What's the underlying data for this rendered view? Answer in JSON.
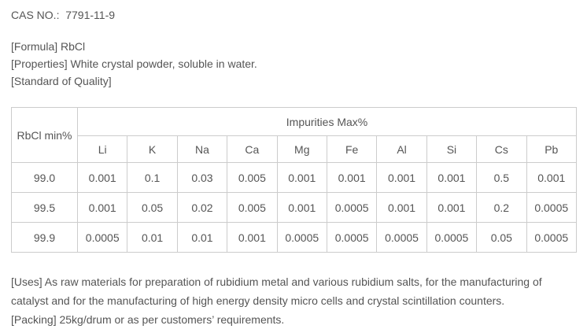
{
  "page": {
    "cas_line": "CAS NO.:  7791-11-9",
    "formula_line": "[Formula] RbCl",
    "properties_line": "[Properties] White crystal powder, soluble in water.",
    "standard_line": "[Standard of Quality]",
    "uses_line": "[Uses] As raw materials for preparation of rubidium metal and various rubidium salts, for the manufacturing of catalyst and for the manufacturing of high energy density micro cells and crystal scintillation counters.",
    "packing_line": "[Packing] 25kg/drum or as per customers’ requirements."
  },
  "table": {
    "corner_header": "RbCl min%",
    "impurities_header": "Impurities Max%",
    "element_headers": [
      "Li",
      "K",
      "Na",
      "Ca",
      "Mg",
      "Fe",
      "Al",
      "Si",
      "Cs",
      "Pb"
    ],
    "rows": [
      {
        "purity": "99.0",
        "values": [
          "0.001",
          "0.1",
          "0.03",
          "0.005",
          "0.001",
          "0.001",
          "0.001",
          "0.001",
          "0.5",
          "0.001"
        ]
      },
      {
        "purity": "99.5",
        "values": [
          "0.001",
          "0.05",
          "0.02",
          "0.005",
          "0.001",
          "0.0005",
          "0.001",
          "0.001",
          "0.2",
          "0.0005"
        ]
      },
      {
        "purity": "99.9",
        "values": [
          "0.0005",
          "0.01",
          "0.01",
          "0.001",
          "0.0005",
          "0.0005",
          "0.0005",
          "0.0005",
          "0.05",
          "0.0005"
        ]
      }
    ]
  },
  "colors": {
    "text": "#555555",
    "border": "#cccccc",
    "background": "#ffffff"
  }
}
